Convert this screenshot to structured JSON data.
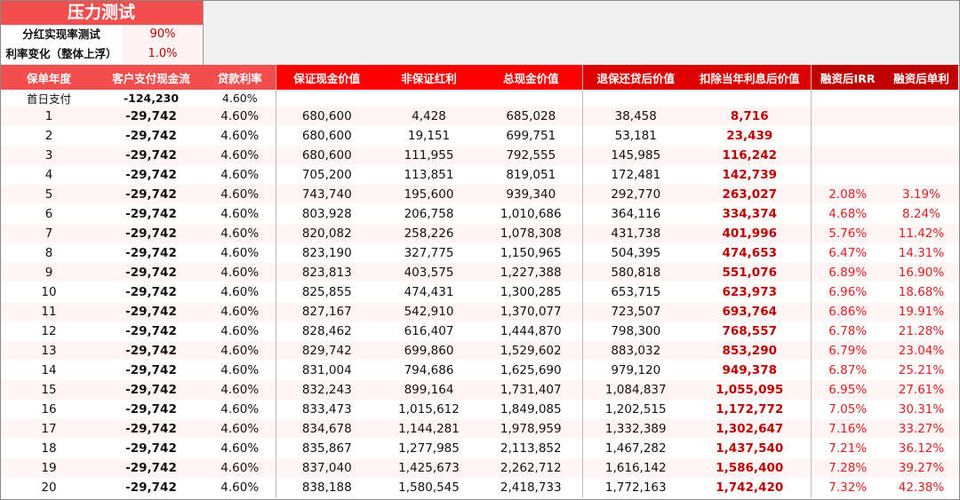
{
  "title": "压力测试",
  "params": [
    {
      "label": "分红实现率测试",
      "value": "90%"
    },
    {
      "label": "利率变化（整体上浮）",
      "value": "1.0%"
    }
  ],
  "headers": [
    "保单年度",
    "客户支付现金流",
    "贷款利率",
    "保证现金价值",
    "非保证红利",
    "总现金价值",
    "退保还贷后价值",
    "扣除当年利息后价值",
    "融资后IRR",
    "融资后单利"
  ],
  "colors": {
    "header_light": "#f24e4e",
    "header_bright": "#ff0000",
    "header_mid": "#dd0000",
    "header_dark": "#c00000",
    "highlight_text": "#c00000"
  },
  "rows": [
    [
      "首日支付",
      "-124,230",
      "4.60%",
      "",
      "",
      "",
      "",
      "",
      "",
      ""
    ],
    [
      "1",
      "-29,742",
      "4.60%",
      "680,600",
      "4,428",
      "685,028",
      "38,458",
      "8,716",
      "",
      ""
    ],
    [
      "2",
      "-29,742",
      "4.60%",
      "680,600",
      "19,151",
      "699,751",
      "53,181",
      "23,439",
      "",
      ""
    ],
    [
      "3",
      "-29,742",
      "4.60%",
      "680,600",
      "111,955",
      "792,555",
      "145,985",
      "116,242",
      "",
      ""
    ],
    [
      "4",
      "-29,742",
      "4.60%",
      "705,200",
      "113,851",
      "819,051",
      "172,481",
      "142,739",
      "",
      ""
    ],
    [
      "5",
      "-29,742",
      "4.60%",
      "743,740",
      "195,600",
      "939,340",
      "292,770",
      "263,027",
      "2.08%",
      "3.19%"
    ],
    [
      "6",
      "-29,742",
      "4.60%",
      "803,928",
      "206,758",
      "1,010,686",
      "364,116",
      "334,374",
      "4.68%",
      "8.24%"
    ],
    [
      "7",
      "-29,742",
      "4.60%",
      "820,082",
      "258,226",
      "1,078,308",
      "431,738",
      "401,996",
      "5.76%",
      "11.42%"
    ],
    [
      "8",
      "-29,742",
      "4.60%",
      "823,190",
      "327,775",
      "1,150,965",
      "504,395",
      "474,653",
      "6.47%",
      "14.31%"
    ],
    [
      "9",
      "-29,742",
      "4.60%",
      "823,813",
      "403,575",
      "1,227,388",
      "580,818",
      "551,076",
      "6.89%",
      "16.90%"
    ],
    [
      "10",
      "-29,742",
      "4.60%",
      "825,855",
      "474,431",
      "1,300,285",
      "653,715",
      "623,973",
      "6.96%",
      "18.68%"
    ],
    [
      "11",
      "-29,742",
      "4.60%",
      "827,167",
      "542,910",
      "1,370,077",
      "723,507",
      "693,764",
      "6.86%",
      "19.91%"
    ],
    [
      "12",
      "-29,742",
      "4.60%",
      "828,462",
      "616,407",
      "1,444,870",
      "798,300",
      "768,557",
      "6.78%",
      "21.28%"
    ],
    [
      "13",
      "-29,742",
      "4.60%",
      "829,742",
      "699,860",
      "1,529,602",
      "883,032",
      "853,290",
      "6.79%",
      "23.04%"
    ],
    [
      "14",
      "-29,742",
      "4.60%",
      "831,004",
      "794,686",
      "1,625,690",
      "979,120",
      "949,378",
      "6.87%",
      "25.21%"
    ],
    [
      "15",
      "-29,742",
      "4.60%",
      "832,243",
      "899,164",
      "1,731,407",
      "1,084,837",
      "1,055,095",
      "6.95%",
      "27.61%"
    ],
    [
      "16",
      "-29,742",
      "4.60%",
      "833,473",
      "1,015,612",
      "1,849,085",
      "1,202,515",
      "1,172,772",
      "7.05%",
      "30.31%"
    ],
    [
      "17",
      "-29,742",
      "4.60%",
      "834,678",
      "1,144,281",
      "1,978,959",
      "1,332,389",
      "1,302,647",
      "7.16%",
      "33.27%"
    ],
    [
      "18",
      "-29,742",
      "4.60%",
      "835,867",
      "1,277,985",
      "2,113,852",
      "1,467,282",
      "1,437,540",
      "7.21%",
      "36.12%"
    ],
    [
      "19",
      "-29,742",
      "4.60%",
      "837,040",
      "1,425,673",
      "2,262,712",
      "1,616,142",
      "1,586,400",
      "7.28%",
      "39.27%"
    ],
    [
      "20",
      "-29,742",
      "4.60%",
      "838,188",
      "1,580,545",
      "2,418,733",
      "1,772,163",
      "1,742,420",
      "7.32%",
      "42.38%"
    ]
  ]
}
